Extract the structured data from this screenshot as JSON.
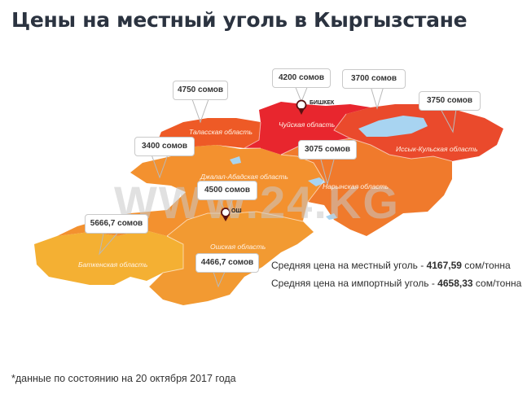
{
  "title": "Цены на местный уголь в Кыргызстане",
  "watermark": "WWW.24.KG",
  "colors": {
    "chuy": "#e8262e",
    "talas": "#ee5a26",
    "issyk_kul": "#ea4a2c",
    "naryn": "#f07a2c",
    "jalal_abad": "#f3912f",
    "osh": "#f29a32",
    "batken": "#f4b033",
    "lake": "#a8d4f1"
  },
  "cities": {
    "bishkek": "БИШКЕК",
    "osh": "ОШ"
  },
  "regions": {
    "talas": "Таласская область",
    "chuy": "Чуйская область",
    "issyk_kul": "Иссык-Кульская область",
    "naryn": "Нарынская область",
    "jalal_abad": "Джалал-Абадская область",
    "osh": "Ошская область",
    "batken": "Баткенская область"
  },
  "prices": {
    "talas": "4750 сомов",
    "bishkek": "4200 сомов",
    "chuy": "3700 сомов",
    "issyk_kul": "3750 сомов",
    "jalal_abad_north": "3400 сомов",
    "naryn": "3075 сомов",
    "jalal_abad": "4500 сомов",
    "batken": "5666,7 сомов",
    "osh": "4466,7 сомов"
  },
  "averages": {
    "local_label": "Средняя цена на местный уголь -",
    "local_value": "4167,59",
    "local_unit": "сом/тонна",
    "import_label": "Средняя цена на импортный уголь -",
    "import_value": "4658,33",
    "import_unit": "сом/тонна"
  },
  "footnote": "*данные по состоянию на 20 октября 2017 года"
}
